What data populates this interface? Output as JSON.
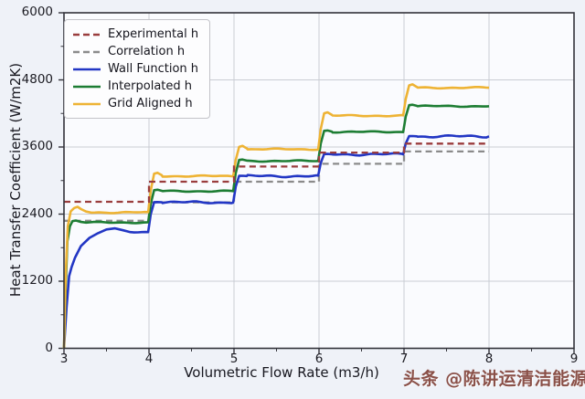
{
  "watermark": {
    "text": "头条 @陈讲运清洁能源",
    "color": "#8a5048"
  },
  "chart_data": {
    "type": "line",
    "title": "",
    "xlabel": "Volumetric Flow Rate (m3/h)",
    "ylabel": "Heat Transfer Coefficient (W/m2K)",
    "xlim": [
      3,
      9
    ],
    "ylim": [
      0,
      6000
    ],
    "xticks": [
      3,
      4,
      5,
      6,
      7,
      8,
      9
    ],
    "yticks": [
      0,
      1200,
      2400,
      3600,
      4800,
      6000
    ],
    "x_minor_ticks": [
      3.5,
      4.5,
      5.5,
      6.5,
      7.5,
      8.5
    ],
    "y_minor_ticks": [
      600,
      1800,
      3000,
      4200,
      5400
    ],
    "grid": true,
    "legend_position": "upper-left",
    "segment_edges": [
      3,
      4,
      5,
      6,
      7,
      8
    ],
    "plot_background": "#fafbfe",
    "grid_color": "#c9ccd4",
    "spine_color": "#33333a",
    "series": [
      {
        "name": "Experimental h",
        "line": "dashed",
        "color": "#9a3d3d",
        "plateaus": [
          2620,
          2980,
          3250,
          3500,
          3660
        ]
      },
      {
        "name": "Correlation h",
        "line": "dashed",
        "color": "#8b8b8b",
        "plateaus": [
          2280,
          2610,
          2980,
          3300,
          3520
        ]
      },
      {
        "name": "Wall Function h",
        "line": "solid",
        "color": "#2236c4",
        "rise": "slow",
        "plateaus": [
          2080,
          2610,
          3080,
          3470,
          3790
        ]
      },
      {
        "name": "Interpolated h",
        "line": "solid",
        "color": "#1d7d33",
        "rise": "fast",
        "plateaus": [
          2250,
          2810,
          3350,
          3870,
          4330
        ]
      },
      {
        "name": "Grid Aligned h",
        "line": "solid",
        "color": "#eeb334",
        "rise": "overshoot",
        "plateaus": [
          2430,
          3080,
          3560,
          4160,
          4660
        ]
      }
    ]
  }
}
